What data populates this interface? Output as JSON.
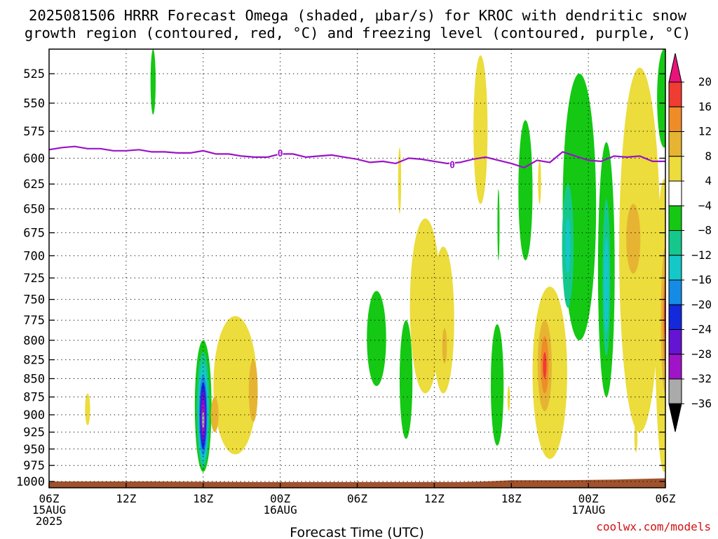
{
  "title": {
    "line1": "2025081506 HRRR Forecast Omega (shaded, μbar/s) for KROC with dendritic snow",
    "line2": "growth region (contoured, red, °C) and freezing level (contoured, purple, °C)"
  },
  "xlabel": "Forecast Time (UTC)",
  "credit": "coolwx.com/models",
  "colors": {
    "freezing_line": "#9a14c8",
    "terrain": "#a0522d",
    "grid": "#000000"
  },
  "chart_data": {
    "type": "heatmap",
    "title": "2025081506 HRRR Forecast Omega (shaded, μbar/s) for KROC with dendritic snow growth region (contoured, red, °C) and freezing level (contoured, purple, °C)",
    "xlabel": "Forecast Time (UTC)",
    "ylabel": "",
    "x_units": "hours since 2025-08-15 06Z",
    "xlim": [
      0,
      48
    ],
    "ylim": [
      1010,
      505
    ],
    "y_scale": "log-pressure (hPa, inverted)",
    "grid": true,
    "x_ticks": [
      {
        "x": 0,
        "labels": [
          "06Z",
          "15AUG",
          "2025"
        ]
      },
      {
        "x": 6,
        "labels": [
          "12Z"
        ]
      },
      {
        "x": 12,
        "labels": [
          "18Z"
        ]
      },
      {
        "x": 18,
        "labels": [
          "00Z",
          "16AUG"
        ]
      },
      {
        "x": 24,
        "labels": [
          "06Z"
        ]
      },
      {
        "x": 30,
        "labels": [
          "12Z"
        ]
      },
      {
        "x": 36,
        "labels": [
          "18Z"
        ]
      },
      {
        "x": 42,
        "labels": [
          "00Z",
          "17AUG"
        ]
      },
      {
        "x": 48,
        "labels": [
          "06Z"
        ]
      }
    ],
    "y_ticks": [
      525,
      550,
      575,
      600,
      625,
      650,
      675,
      700,
      725,
      750,
      775,
      800,
      825,
      850,
      875,
      900,
      925,
      950,
      975,
      1000
    ],
    "colorbar": {
      "labels": [
        "20",
        "16",
        "12",
        "8",
        "4",
        "−4",
        "−8",
        "−12",
        "−16",
        "−20",
        "−24",
        "−28",
        "−32",
        "−36"
      ],
      "bins": [
        {
          "lo": 20,
          "hi": null,
          "color": "#e8147a"
        },
        {
          "lo": 16,
          "hi": 20,
          "color": "#f03c32"
        },
        {
          "lo": 12,
          "hi": 16,
          "color": "#ee8c28"
        },
        {
          "lo": 8,
          "hi": 12,
          "color": "#e6b432"
        },
        {
          "lo": 4,
          "hi": 8,
          "color": "#ecdc3c"
        },
        {
          "lo": -4,
          "hi": 4,
          "color": "#ffffff"
        },
        {
          "lo": -8,
          "hi": -4,
          "color": "#14c814"
        },
        {
          "lo": -12,
          "hi": -8,
          "color": "#14c88c"
        },
        {
          "lo": -16,
          "hi": -12,
          "color": "#14c8c8"
        },
        {
          "lo": -20,
          "hi": -16,
          "color": "#148ce6"
        },
        {
          "lo": -24,
          "hi": -20,
          "color": "#1428dc"
        },
        {
          "lo": -28,
          "hi": -24,
          "color": "#6414d2"
        },
        {
          "lo": -32,
          "hi": -28,
          "color": "#a014c8"
        },
        {
          "lo": -36,
          "hi": -32,
          "color": "#aaaaaa"
        },
        {
          "lo": null,
          "hi": -36,
          "color": "#000000"
        }
      ]
    },
    "freezing_level": {
      "label": "0",
      "label_at": [
        [
          18,
          595
        ],
        [
          31.4,
          606
        ]
      ],
      "points": [
        [
          0,
          592
        ],
        [
          1,
          590
        ],
        [
          2,
          589
        ],
        [
          3,
          591
        ],
        [
          4,
          591
        ],
        [
          5,
          593
        ],
        [
          6,
          593
        ],
        [
          7,
          592
        ],
        [
          8,
          594
        ],
        [
          9,
          594
        ],
        [
          10,
          595
        ],
        [
          11,
          595
        ],
        [
          12,
          593
        ],
        [
          13,
          596
        ],
        [
          14,
          596
        ],
        [
          15,
          598
        ],
        [
          16,
          599
        ],
        [
          17,
          599
        ],
        [
          18,
          596
        ],
        [
          19,
          596
        ],
        [
          20,
          599
        ],
        [
          21,
          598
        ],
        [
          22,
          597
        ],
        [
          23,
          599
        ],
        [
          24,
          601
        ],
        [
          25,
          604
        ],
        [
          26,
          603
        ],
        [
          27,
          605
        ],
        [
          28,
          600
        ],
        [
          29,
          601
        ],
        [
          30,
          603
        ],
        [
          31,
          605
        ],
        [
          32,
          604
        ],
        [
          33,
          601
        ],
        [
          34,
          599
        ],
        [
          35,
          602
        ],
        [
          36,
          605
        ],
        [
          37,
          609
        ],
        [
          38,
          602
        ],
        [
          39,
          604
        ],
        [
          40,
          594
        ],
        [
          41,
          598
        ],
        [
          42,
          602
        ],
        [
          43,
          603
        ],
        [
          44,
          598
        ],
        [
          45,
          599
        ],
        [
          46,
          598
        ],
        [
          47,
          603
        ],
        [
          48,
          603
        ]
      ]
    },
    "omega_regions": [
      {
        "t": 8.1,
        "p_top": 505,
        "p_bot": 560,
        "dt": 0.2,
        "value": -6
      },
      {
        "t": 3.0,
        "p_top": 870,
        "p_bot": 915,
        "dt": 0.2,
        "value": 6
      },
      {
        "t": 12.0,
        "p_top": 800,
        "p_bot": 985,
        "dt": 0.65,
        "value": -6
      },
      {
        "t": 12.0,
        "p_top": 815,
        "p_bot": 978,
        "dt": 0.5,
        "value": -10
      },
      {
        "t": 12.0,
        "p_top": 830,
        "p_bot": 970,
        "dt": 0.4,
        "value": -14
      },
      {
        "t": 12.0,
        "p_top": 845,
        "p_bot": 960,
        "dt": 0.32,
        "value": -18
      },
      {
        "t": 12.0,
        "p_top": 855,
        "p_bot": 950,
        "dt": 0.25,
        "value": -22
      },
      {
        "t": 12.0,
        "p_top": 865,
        "p_bot": 940,
        "dt": 0.18,
        "value": -26
      },
      {
        "t": 12.0,
        "p_top": 880,
        "p_bot": 930,
        "dt": 0.12,
        "value": -30
      },
      {
        "t": 12.0,
        "p_top": 895,
        "p_bot": 920,
        "dt": 0.07,
        "value": -34
      },
      {
        "t": 14.5,
        "p_top": 770,
        "p_bot": 958,
        "dt": 1.7,
        "value": 6
      },
      {
        "t": 12.9,
        "p_top": 875,
        "p_bot": 925,
        "dt": 0.3,
        "value": 10
      },
      {
        "t": 15.9,
        "p_top": 825,
        "p_bot": 910,
        "dt": 0.35,
        "value": 10
      },
      {
        "t": 25.5,
        "p_top": 740,
        "p_bot": 860,
        "dt": 0.75,
        "value": -6
      },
      {
        "t": 27.8,
        "p_top": 775,
        "p_bot": 935,
        "dt": 0.5,
        "value": -6
      },
      {
        "t": 27.3,
        "p_top": 590,
        "p_bot": 655,
        "dt": 0.12,
        "value": 6
      },
      {
        "t": 29.3,
        "p_top": 660,
        "p_bot": 870,
        "dt": 1.2,
        "value": 6
      },
      {
        "t": 30.7,
        "p_top": 690,
        "p_bot": 870,
        "dt": 0.85,
        "value": 6
      },
      {
        "t": 30.8,
        "p_top": 785,
        "p_bot": 830,
        "dt": 0.18,
        "value": 10
      },
      {
        "t": 33.6,
        "p_top": 510,
        "p_bot": 645,
        "dt": 0.55,
        "value": 6
      },
      {
        "t": 35.0,
        "p_top": 630,
        "p_bot": 705,
        "dt": 0.08,
        "value": -6
      },
      {
        "t": 34.9,
        "p_top": 780,
        "p_bot": 945,
        "dt": 0.5,
        "value": -6
      },
      {
        "t": 35.8,
        "p_top": 860,
        "p_bot": 895,
        "dt": 0.1,
        "value": 6
      },
      {
        "t": 37.1,
        "p_top": 565,
        "p_bot": 705,
        "dt": 0.55,
        "value": -6
      },
      {
        "t": 38.2,
        "p_top": 602,
        "p_bot": 645,
        "dt": 0.12,
        "value": 6
      },
      {
        "t": 39.0,
        "p_top": 735,
        "p_bot": 965,
        "dt": 1.35,
        "value": 6
      },
      {
        "t": 38.6,
        "p_top": 775,
        "p_bot": 895,
        "dt": 0.55,
        "value": 10
      },
      {
        "t": 38.6,
        "p_top": 795,
        "p_bot": 870,
        "dt": 0.3,
        "value": 14
      },
      {
        "t": 38.6,
        "p_top": 815,
        "p_bot": 850,
        "dt": 0.14,
        "value": 18
      },
      {
        "t": 41.3,
        "p_top": 525,
        "p_bot": 800,
        "dt": 1.3,
        "value": -6
      },
      {
        "t": 40.4,
        "p_top": 625,
        "p_bot": 760,
        "dt": 0.45,
        "value": -10
      },
      {
        "t": 40.4,
        "p_top": 660,
        "p_bot": 720,
        "dt": 0.2,
        "value": -14
      },
      {
        "t": 43.4,
        "p_top": 585,
        "p_bot": 875,
        "dt": 0.65,
        "value": -6
      },
      {
        "t": 43.4,
        "p_top": 640,
        "p_bot": 820,
        "dt": 0.3,
        "value": -10
      },
      {
        "t": 43.4,
        "p_top": 680,
        "p_bot": 790,
        "dt": 0.2,
        "value": -14
      },
      {
        "t": 46.0,
        "p_top": 520,
        "p_bot": 925,
        "dt": 1.6,
        "value": 6
      },
      {
        "t": 45.5,
        "p_top": 645,
        "p_bot": 720,
        "dt": 0.55,
        "value": 10
      },
      {
        "t": 45.7,
        "p_top": 910,
        "p_bot": 955,
        "dt": 0.12,
        "value": 6
      },
      {
        "t": 47.9,
        "p_top": 505,
        "p_bot": 590,
        "dt": 0.55,
        "value": -6
      },
      {
        "t": 47.9,
        "p_top": 620,
        "p_bot": 985,
        "dt": 0.7,
        "value": 6
      },
      {
        "t": 48.0,
        "p_top": 690,
        "p_bot": 870,
        "dt": 0.35,
        "value": 10
      },
      {
        "t": 48.0,
        "p_top": 720,
        "p_bot": 835,
        "dt": 0.2,
        "value": 14
      },
      {
        "t": 48.0,
        "p_top": 740,
        "p_bot": 800,
        "dt": 0.1,
        "value": 18
      }
    ],
    "terrain_surface": [
      [
        0,
        1000
      ],
      [
        8,
        1000
      ],
      [
        16,
        1001
      ],
      [
        24,
        1001
      ],
      [
        32,
        1001
      ],
      [
        34,
        1000
      ],
      [
        36,
        998
      ],
      [
        40,
        998
      ],
      [
        44,
        997
      ],
      [
        48,
        995
      ]
    ]
  }
}
